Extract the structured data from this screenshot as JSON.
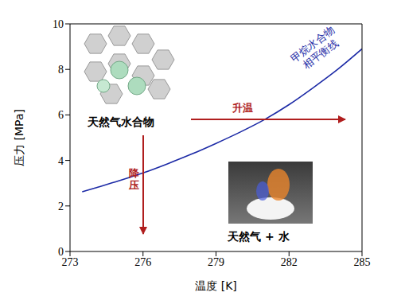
{
  "chart_data": {
    "type": "line",
    "x_label": "温度 [K]",
    "y_label": "压力 [MPa]",
    "x": [
      273.5,
      274,
      275,
      276,
      277,
      278,
      279,
      280,
      281,
      282,
      283,
      284,
      285
    ],
    "series": [
      {
        "color": "#1c2aa6",
        "values": [
          2.62,
          2.78,
          3.1,
          3.45,
          3.85,
          4.28,
          4.75,
          5.25,
          5.8,
          6.45,
          7.2,
          8.0,
          8.9
        ]
      }
    ],
    "xlim": [
      273,
      285
    ],
    "xticks": [
      273,
      276,
      279,
      282,
      285
    ],
    "ylim": [
      0,
      10
    ],
    "yticks": [
      0,
      2,
      4,
      6,
      8,
      10
    ],
    "grid": false,
    "annotations": [
      {
        "text": [
          "甲烷水合物",
          "相平衡线"
        ],
        "color": "#1c2aa6"
      },
      {
        "text": "天然气水合物",
        "color": "#000000"
      },
      {
        "text": "升温",
        "color": "#b01e1e"
      },
      {
        "text": "降压",
        "color": "#b01e1e"
      },
      {
        "text": "天然气 + 水",
        "color": "#000000"
      }
    ]
  }
}
